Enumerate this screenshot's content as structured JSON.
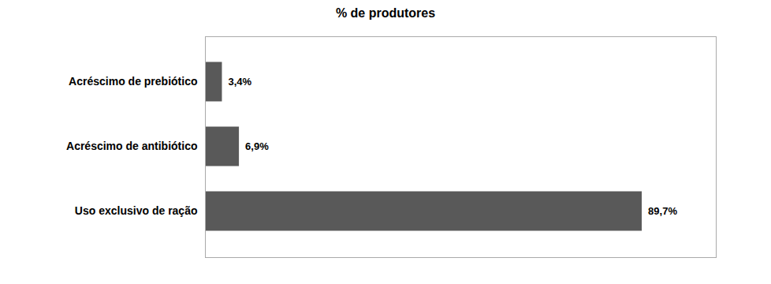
{
  "chart_data": {
    "type": "bar",
    "orientation": "horizontal",
    "title": "% de produtores",
    "categories": [
      "Uso exclusivo de ração",
      "Acréscimo de antibiótico",
      "Acréscimo de prebiótico"
    ],
    "values": [
      89.7,
      6.9,
      3.4
    ],
    "value_labels": [
      "89,7%",
      "6,9%",
      "3,4%"
    ],
    "color": "#595959",
    "xlim": [
      0,
      105
    ],
    "data_labels": true,
    "tick_labels": "y",
    "grid": false
  }
}
